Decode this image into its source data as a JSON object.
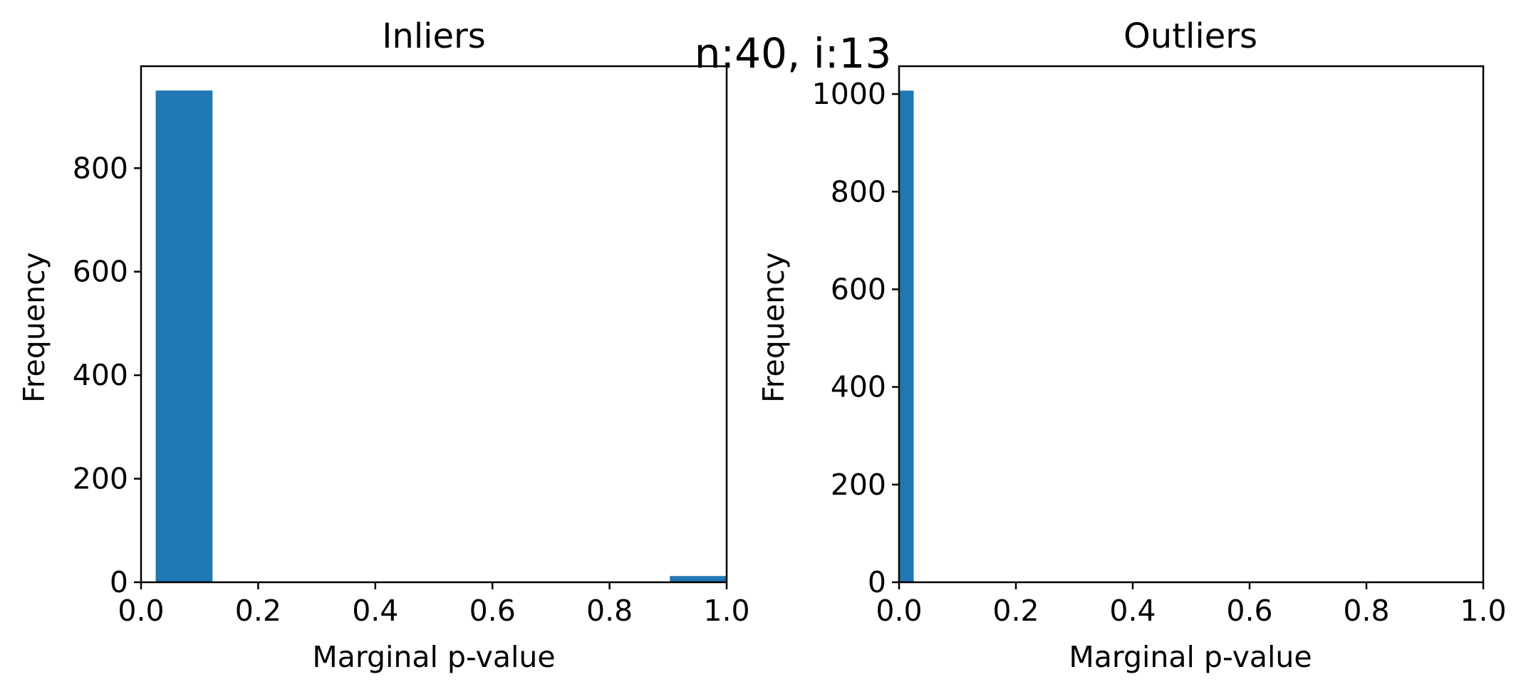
{
  "suptitle": "n:40, i:13",
  "bar_color": "#1f77b4",
  "chart_data": [
    {
      "type": "bar",
      "title": "Inliers",
      "xlabel": "Marginal p-value",
      "ylabel": "Frequency",
      "xlim": [
        0.0,
        1.0
      ],
      "ylim": [
        0,
        997
      ],
      "xticks": [
        "0.0",
        "0.2",
        "0.4",
        "0.6",
        "0.8",
        "1.0"
      ],
      "yticks": [
        "0",
        "200",
        "400",
        "600",
        "800"
      ],
      "bins": [
        {
          "x0": 0.025,
          "x1": 0.122,
          "value": 950
        },
        {
          "x0": 0.903,
          "x1": 1.0,
          "value": 12
        }
      ],
      "grid": false,
      "legend": "none"
    },
    {
      "type": "bar",
      "title": "Outliers",
      "xlabel": "Marginal p-value",
      "ylabel": "Frequency",
      "xlim": [
        0.0,
        1.0
      ],
      "ylim": [
        0,
        1057
      ],
      "xticks": [
        "0.0",
        "0.2",
        "0.4",
        "0.6",
        "0.8",
        "1.0"
      ],
      "yticks": [
        "0",
        "200",
        "400",
        "600",
        "800",
        "1000"
      ],
      "bins": [
        {
          "x0": 0.0,
          "x1": 0.025,
          "value": 1007
        }
      ],
      "grid": false,
      "legend": "none"
    }
  ]
}
